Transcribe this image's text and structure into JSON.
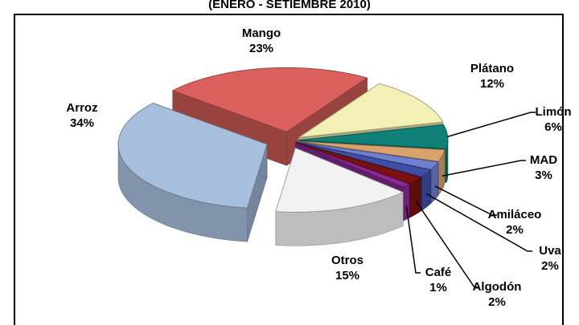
{
  "chart_data": {
    "type": "pie3d",
    "title": "(ENERO - SETIEMBRE 2010)",
    "categories": [
      "Mango",
      "Plátano",
      "Limón",
      "MAD",
      "Amiláceo",
      "Uva",
      "Algodón",
      "Café",
      "Otros",
      "Arroz"
    ],
    "values": [
      23,
      12,
      6,
      3,
      2,
      2,
      2,
      1,
      15,
      34
    ],
    "value_labels": [
      "23%",
      "12%",
      "6%",
      "3%",
      "2%",
      "2%",
      "2%",
      "1%",
      "15%",
      "34%"
    ],
    "colors": [
      "#d9605c",
      "#f3f0b6",
      "#0f8078",
      "#d8a26c",
      "#6f7fd0",
      "#3f4fa8",
      "#7a1010",
      "#8a2a96",
      "#f2f2f2",
      "#a7bedd"
    ]
  }
}
